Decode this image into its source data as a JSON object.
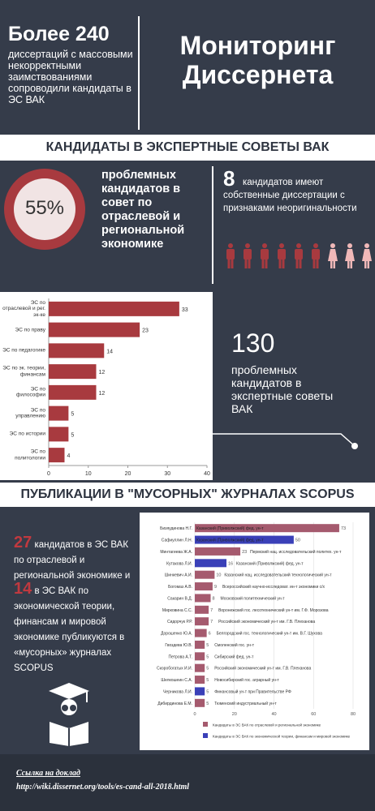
{
  "header": {
    "headline": "Более 240",
    "subtitle": "диссертаций с массовыми некорректными заимствованиями сопроводили кандидаты в ЭС ВАК",
    "title": "Мониторинг Диссернета"
  },
  "section1": {
    "title": "КАНДИДАТЫ В ЭКСПЕРТНЫЕ СОВЕТЫ ВАК",
    "share": "55%",
    "share_text": "проблемных кандидатов в совет по отраслевой и региональной экономике",
    "own_count": "8",
    "own_text": "кандидатов имеют собственные диссертации с признаками неоригинальности",
    "total": "130",
    "total_text": "проблемных кандидатов в экспертные советы ВАК"
  },
  "section2": {
    "title": "ПУБЛИКАЦИИ В \"МУСОРНЫХ\" ЖУРНАЛАХ SCOPUS",
    "count1": "27",
    "text1": "кандидатов в ЭС ВАК по отраслевой и региональной экономике и",
    "count2": "14",
    "text2": "в ЭС ВАК по экономической теории, финансам и мировой экономике публикуются в «мусорных» журналах SCOPUS"
  },
  "footer": {
    "link_title": "Ссылка на доклад",
    "url": "http://wiki.dissernet.org/tools/es-cand-all-2018.html"
  },
  "chart_data": [
    {
      "type": "bar",
      "orientation": "horizontal",
      "categories": [
        "ЭС по отраслевой и рег. эк-ке",
        "ЭС по праву",
        "ЭС по педагогике",
        "ЭС по эк. теории, финансам",
        "ЭС по философии",
        "ЭС по управлению",
        "ЭС по истории",
        "ЭС по политологии"
      ],
      "values": [
        33,
        23,
        14,
        12,
        12,
        5,
        5,
        4
      ],
      "color": "#a83a3f",
      "xlim": [
        0,
        40
      ],
      "xticks": [
        0,
        10,
        20,
        30,
        40
      ],
      "grid": false
    },
    {
      "type": "bar",
      "orientation": "horizontal",
      "categories": [
        "Бизяудинова Н.Г.",
        "Сафиуллин Л.Н.",
        "Минтагиева Ж.А.",
        "Кутакова Л.И.",
        "Шинкевич А.И.",
        "Богомаз А.В.",
        "Сакарин В.Д.",
        "Мирковина С.С.",
        "Сидорчук Р.Р.",
        "Дорошенко Ю.А.",
        "Гвоздева Ю.В.",
        "Петрова А.Т.",
        "Скоробогатых И.И.",
        "Шелкошеин С.А.",
        "Черникова Л.И.",
        "Дибирдинова Е.М."
      ],
      "series": [
        {
          "name": "Кандидаты в ЭС ВАК по отраслевой и региональной экономике",
          "color": "#a55a6e",
          "values": [
            73,
            null,
            23,
            null,
            10,
            9,
            8,
            7,
            7,
            6,
            5,
            5,
            5,
            5,
            null,
            5
          ]
        },
        {
          "name": "Кандидаты в ЭС ВАК по экономической теории, финансам и мировой экономике",
          "color": "#3a40b8",
          "values": [
            null,
            50,
            null,
            16,
            null,
            null,
            null,
            null,
            null,
            null,
            null,
            null,
            null,
            null,
            5,
            null
          ]
        }
      ],
      "bar_labels": [
        "Казанский (Приволжский) фед. ун-т",
        "Казанский (Приволжский) фед. ун-т",
        "Пермский нац. исследовательский политех. ун-т",
        "Казанский (Приволжский) фед. ун-т",
        "Казанский нац. исследовательский технологический ун-т",
        "Всероссийский научно-исследоват. ин-т экономики с/х",
        "Московский политехнический ун-т",
        "Воронежский гос. лесотехнический ун-т им. Г.Ф. Морозова",
        "Российский экономический ун-т им. Г.В. Плеханова",
        "Белгородский гос. технологический ун-т им. В.Г. Шухова",
        "Смоленский гос. ун-т",
        "Сибирский фед. ун-т",
        "Российский экономический ун-т им. Г.В. Плеханова",
        "Новосибирский гос. аграрный ун-т",
        "Финансовый ун-т при Правительстве РФ",
        "Тюменский индустриальный ун-т"
      ],
      "xlim": [
        0,
        80
      ],
      "xticks": [
        0,
        20,
        40,
        60,
        80
      ],
      "grid": true,
      "legend": "bottom"
    }
  ]
}
